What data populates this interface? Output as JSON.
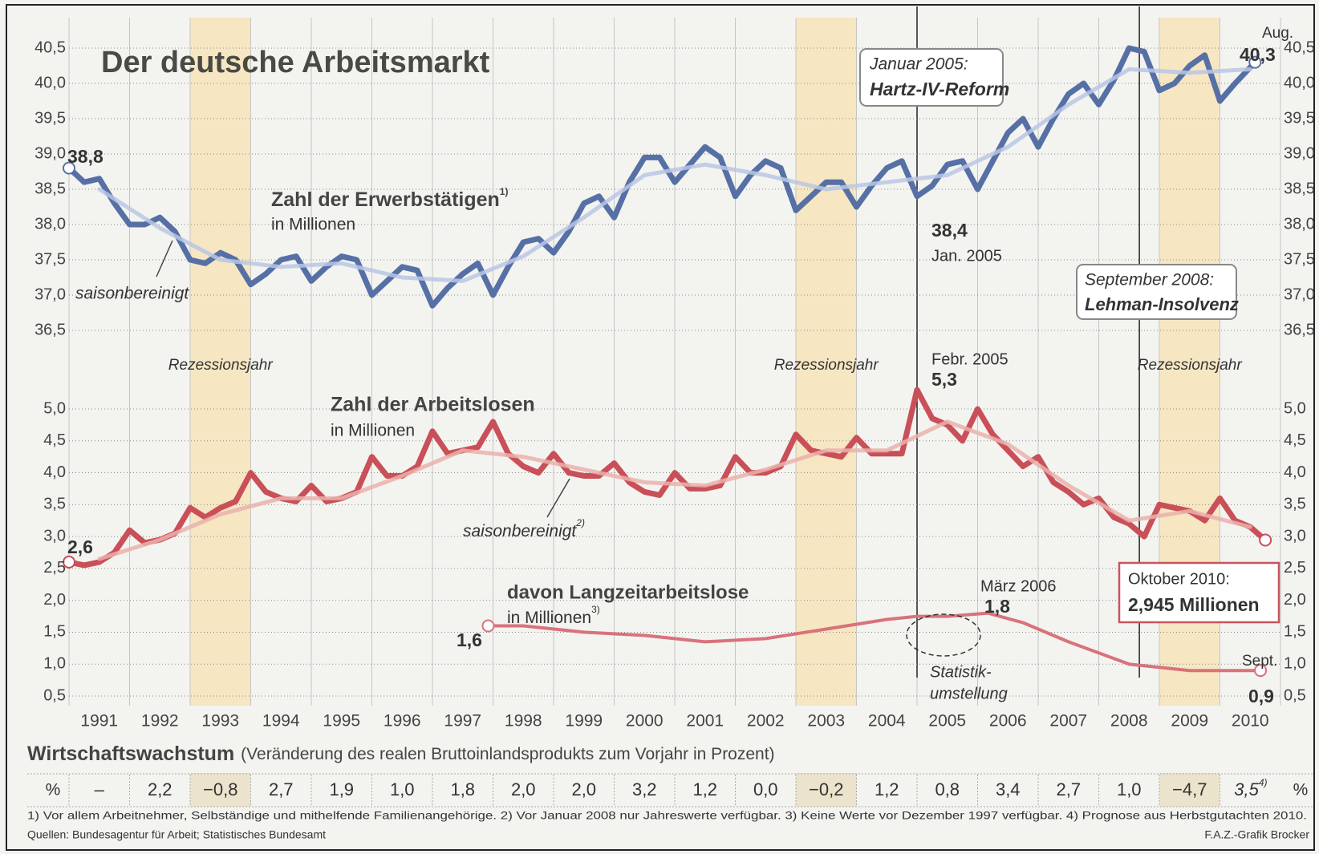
{
  "chart_data": [
    {
      "type": "line",
      "title": "Der deutsche Arbeitsmarkt",
      "xlim": [
        1991,
        2011
      ],
      "ylim": [
        36.5,
        40.5
      ],
      "yticks": [
        {
          "value": 36.5,
          "label": "36,5"
        },
        {
          "value": 37.0,
          "label": "37,0"
        },
        {
          "value": 37.5,
          "label": "37,5"
        },
        {
          "value": 38.0,
          "label": "38,0"
        },
        {
          "value": 38.5,
          "label": "38,5"
        },
        {
          "value": 39.0,
          "label": "39,0"
        },
        {
          "value": 39.5,
          "label": "39,5"
        },
        {
          "value": 40.0,
          "label": "40,0"
        },
        {
          "value": 40.5,
          "label": "40,5"
        }
      ],
      "grid": true,
      "series": [
        {
          "name": "Zahl der Erwerbstätigen",
          "note": "1)",
          "unit": "in Millionen",
          "color": "#5670a6",
          "x": [
            1991,
            1991.25,
            1991.5,
            1991.75,
            1992,
            1992.25,
            1992.5,
            1992.75,
            1993,
            1993.25,
            1993.5,
            1993.75,
            1994,
            1994.25,
            1994.5,
            1994.75,
            1995,
            1995.25,
            1995.5,
            1995.75,
            1996,
            1996.25,
            1996.5,
            1996.75,
            1997,
            1997.25,
            1997.5,
            1997.75,
            1998,
            1998.25,
            1998.5,
            1998.75,
            1999,
            1999.25,
            1999.5,
            1999.75,
            2000,
            2000.25,
            2000.5,
            2000.75,
            2001,
            2001.25,
            2001.5,
            2001.75,
            2002,
            2002.25,
            2002.5,
            2002.75,
            2003,
            2003.25,
            2003.5,
            2003.75,
            2004,
            2004.25,
            2004.5,
            2004.75,
            2005,
            2005.25,
            2005.5,
            2005.75,
            2006,
            2006.25,
            2006.5,
            2006.75,
            2007,
            2007.25,
            2007.5,
            2007.75,
            2008,
            2008.25,
            2008.5,
            2008.75,
            2009,
            2009.25,
            2009.5,
            2009.75,
            2010,
            2010.25,
            2010.58
          ],
          "values": [
            38.8,
            38.6,
            38.65,
            38.3,
            38.0,
            38.0,
            38.1,
            37.9,
            37.5,
            37.45,
            37.6,
            37.5,
            37.15,
            37.3,
            37.5,
            37.55,
            37.2,
            37.4,
            37.55,
            37.5,
            37.0,
            37.2,
            37.4,
            37.35,
            36.85,
            37.1,
            37.3,
            37.45,
            37.0,
            37.4,
            37.75,
            37.8,
            37.6,
            37.9,
            38.3,
            38.4,
            38.1,
            38.6,
            38.95,
            38.95,
            38.6,
            38.85,
            39.1,
            38.95,
            38.4,
            38.7,
            38.9,
            38.8,
            38.2,
            38.4,
            38.6,
            38.6,
            38.25,
            38.55,
            38.8,
            38.9,
            38.4,
            38.55,
            38.85,
            38.9,
            38.5,
            38.9,
            39.3,
            39.5,
            39.1,
            39.5,
            39.85,
            40.0,
            39.7,
            40.05,
            40.5,
            40.45,
            39.9,
            40.0,
            40.25,
            40.4,
            39.75,
            40.0,
            40.3
          ]
        },
        {
          "name": "saisonbereinigt",
          "color": "#b9c5e4",
          "x": [
            1991.5,
            1992.5,
            1993.5,
            1994.5,
            1995.5,
            1996.5,
            1997.5,
            1998.5,
            1999.5,
            2000.5,
            2001.5,
            2002.5,
            2003.5,
            2004.5,
            2005.5,
            2006.5,
            2007.5,
            2008.5,
            2009.5,
            2010.5
          ],
          "values": [
            38.5,
            37.95,
            37.5,
            37.4,
            37.45,
            37.25,
            37.2,
            37.55,
            38.1,
            38.7,
            38.85,
            38.7,
            38.5,
            38.6,
            38.7,
            39.1,
            39.7,
            40.2,
            40.15,
            40.2
          ]
        }
      ],
      "annotations": {
        "start": "38,8",
        "end_date": "Aug.",
        "end": "40,3",
        "low": "38,4",
        "low_date": "Jan. 2005",
        "hartz": {
          "x": 2005,
          "lines": [
            "Januar 2005:",
            "Hartz-IV-Reform"
          ]
        },
        "lehman": {
          "x": 2008.67,
          "lines": [
            "September 2008:",
            "Lehman-Insolvenz"
          ]
        }
      }
    },
    {
      "type": "line",
      "xlim": [
        1991,
        2011
      ],
      "xticks": [
        1991,
        1992,
        1993,
        1994,
        1995,
        1996,
        1997,
        1998,
        1999,
        2000,
        2001,
        2002,
        2003,
        2004,
        2005,
        2006,
        2007,
        2008,
        2009,
        2010
      ],
      "ylim": [
        0.5,
        5.0
      ],
      "yticks": [
        {
          "value": 0.5,
          "label": "0,5"
        },
        {
          "value": 1.0,
          "label": "1,0"
        },
        {
          "value": 1.5,
          "label": "1,5"
        },
        {
          "value": 2.0,
          "label": "2,0"
        },
        {
          "value": 2.5,
          "label": "2,5"
        },
        {
          "value": 3.0,
          "label": "3,0"
        },
        {
          "value": 3.5,
          "label": "3,5"
        },
        {
          "value": 4.0,
          "label": "4,0"
        },
        {
          "value": 4.5,
          "label": "4,5"
        },
        {
          "value": 5.0,
          "label": "5,0"
        }
      ],
      "grid": true,
      "series": [
        {
          "name": "Zahl der Arbeitslosen",
          "unit": "in Millionen",
          "color": "#c94f58",
          "x": [
            1991,
            1991.25,
            1991.5,
            1991.75,
            1992,
            1992.25,
            1992.5,
            1992.75,
            1993,
            1993.25,
            1993.5,
            1993.75,
            1994,
            1994.25,
            1994.5,
            1994.75,
            1995,
            1995.25,
            1995.5,
            1995.75,
            1996,
            1996.25,
            1996.5,
            1996.75,
            1997,
            1997.25,
            1997.5,
            1997.75,
            1998,
            1998.25,
            1998.5,
            1998.75,
            1999,
            1999.25,
            1999.5,
            1999.75,
            2000,
            2000.25,
            2000.5,
            2000.75,
            2001,
            2001.25,
            2001.5,
            2001.75,
            2002,
            2002.25,
            2002.5,
            2002.75,
            2003,
            2003.25,
            2003.5,
            2003.75,
            2004,
            2004.25,
            2004.5,
            2004.75,
            2005,
            2005.25,
            2005.5,
            2005.75,
            2006,
            2006.25,
            2006.5,
            2006.75,
            2007,
            2007.25,
            2007.5,
            2007.75,
            2008,
            2008.25,
            2008.5,
            2008.75,
            2009,
            2009.25,
            2009.5,
            2009.75,
            2010,
            2010.25,
            2010.5,
            2010.75
          ],
          "values": [
            2.6,
            2.55,
            2.6,
            2.75,
            3.1,
            2.9,
            2.95,
            3.05,
            3.45,
            3.3,
            3.45,
            3.55,
            4.0,
            3.7,
            3.6,
            3.55,
            3.8,
            3.55,
            3.6,
            3.7,
            4.25,
            3.95,
            3.95,
            4.1,
            4.65,
            4.3,
            4.35,
            4.4,
            4.8,
            4.3,
            4.1,
            4.0,
            4.3,
            4.0,
            3.95,
            3.95,
            4.15,
            3.85,
            3.7,
            3.65,
            4.0,
            3.75,
            3.75,
            3.8,
            4.25,
            4.0,
            4.0,
            4.1,
            4.6,
            4.35,
            4.3,
            4.25,
            4.55,
            4.3,
            4.3,
            4.3,
            5.3,
            4.85,
            4.75,
            4.5,
            5.0,
            4.6,
            4.35,
            4.1,
            4.25,
            3.85,
            3.7,
            3.5,
            3.6,
            3.3,
            3.2,
            3.0,
            3.5,
            3.45,
            3.4,
            3.25,
            3.6,
            3.25,
            3.15,
            2.945
          ]
        },
        {
          "name": "saisonbereinigt",
          "note": "2)",
          "color": "#eab0aa",
          "x": [
            1991.5,
            1992.5,
            1993.5,
            1994.5,
            1995.5,
            1996.5,
            1997.5,
            1998.5,
            1999.5,
            2000.5,
            2001.5,
            2002.5,
            2003.5,
            2004.5,
            2005.5,
            2006.5,
            2007.5,
            2008.5,
            2009.5,
            2010.5
          ],
          "values": [
            2.65,
            2.95,
            3.35,
            3.6,
            3.6,
            3.95,
            4.35,
            4.25,
            4.05,
            3.85,
            3.8,
            4.05,
            4.35,
            4.35,
            4.8,
            4.45,
            3.8,
            3.25,
            3.4,
            3.15
          ]
        },
        {
          "name": "davon Langzeitarbeitslose",
          "note": "3)",
          "unit": "in Millionen",
          "color": "#d9727a",
          "x": [
            1997.92,
            1998.5,
            1999.5,
            2000.5,
            2001.5,
            2002.5,
            2003.5,
            2004.5,
            2005.0,
            2005.5,
            2006.17,
            2006.75,
            2007.5,
            2008.5,
            2009.5,
            2010.67
          ],
          "values": [
            1.6,
            1.6,
            1.5,
            1.45,
            1.35,
            1.4,
            1.55,
            1.7,
            1.75,
            1.75,
            1.8,
            1.65,
            1.35,
            1.0,
            0.9,
            0.9
          ]
        }
      ],
      "annotations": {
        "start": "2,6",
        "peak_date": "Febr. 2005",
        "peak": "5,3",
        "long_start": "1,6",
        "long_peak_date": "März 2006",
        "long_peak": "1,8",
        "stat": [
          "Statistik-",
          "umstellung"
        ],
        "end_box": [
          "Oktober 2010:",
          "2,945 Millionen"
        ],
        "long_end_date": "Sept.",
        "long_end": "0,9"
      }
    }
  ],
  "recessions": {
    "years": [
      1993,
      2003,
      2009
    ],
    "label": "Rezessionsjahr"
  },
  "growth_table": {
    "title": "Wirtschaftswachstum",
    "subtitle": "(Veränderung des realen Bruttoinlandsprodukts zum Vorjahr in Prozent)",
    "unit": "%",
    "cells": [
      "–",
      "2,2",
      "−0,8",
      "2,7",
      "1,9",
      "1,0",
      "1,8",
      "2,0",
      "2,0",
      "3,2",
      "1,2",
      "0,0",
      "−0,2",
      "1,2",
      "0,8",
      "3,4",
      "2,7",
      "1,0",
      "−4,7",
      "3,5"
    ],
    "last_note": "4)"
  },
  "footnotes": "1) Vor allem Arbeitnehmer, Selbständige und mithelfende Familienangehörige. 2) Vor Januar 2008 nur Jahreswerte verfügbar. 3) Keine Werte vor Dezember 1997 verfügbar. 4) Prognose aus Herbstgutachten 2010.",
  "sources": "Quellen: Bundesagentur für Arbeit; Statistisches Bundesamt",
  "credit": "F.A.Z.-Grafik Brocker"
}
